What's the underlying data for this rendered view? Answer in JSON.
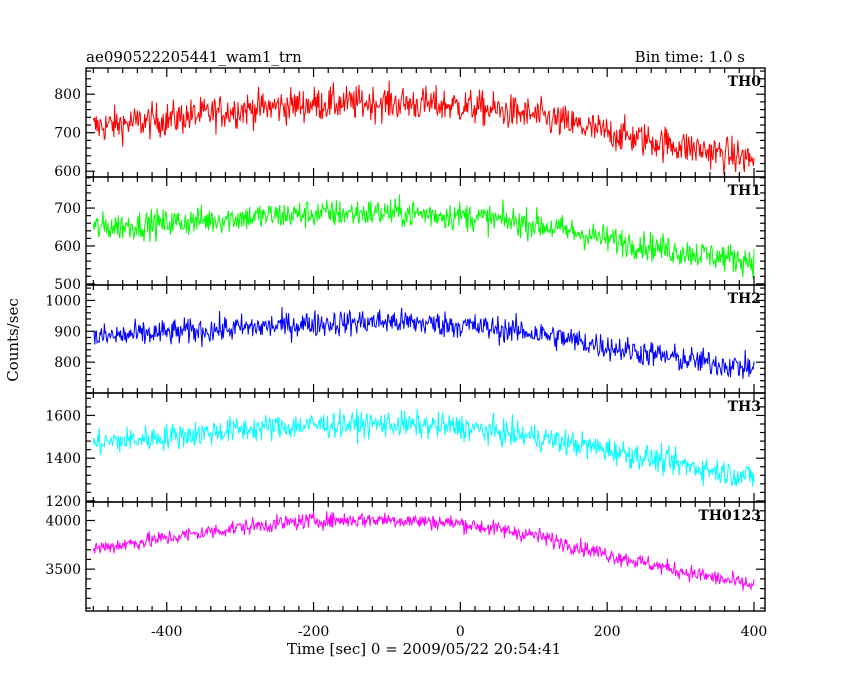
{
  "header": {
    "title": "ae090522205441_wam1_trn",
    "bin_time": "Bin time: 1.0 s"
  },
  "chart_data": {
    "type": "line",
    "xlabel": "Time [sec] 0 = 2009/05/22 20:54:41",
    "ylabel": "Counts/sec",
    "xlim": [
      -510,
      415
    ],
    "xticks": [
      -400,
      -200,
      0,
      200,
      400
    ],
    "x_range": [
      -500,
      400
    ],
    "grid": false,
    "panels": [
      {
        "name": "TH0",
        "color": "#ff0000",
        "ylim": [
          585,
          868
        ],
        "yticks": [
          600,
          700,
          800
        ],
        "trend_t": [
          -500,
          -400,
          -300,
          -200,
          -100,
          0,
          100,
          200,
          300,
          400
        ],
        "trend_y": [
          715,
          735,
          760,
          775,
          778,
          770,
          745,
          700,
          665,
          630
        ],
        "noise": 38
      },
      {
        "name": "TH1",
        "color": "#00ff00",
        "ylim": [
          497,
          782
        ],
        "yticks": [
          500,
          600,
          700
        ],
        "trend_t": [
          -500,
          -400,
          -300,
          -200,
          -100,
          0,
          100,
          200,
          300,
          400
        ],
        "trend_y": [
          648,
          660,
          675,
          685,
          688,
          680,
          658,
          618,
          585,
          560
        ],
        "noise": 32
      },
      {
        "name": "TH2",
        "color": "#0000ff",
        "ylim": [
          700,
          1050
        ],
        "yticks": [
          800,
          900,
          1000
        ],
        "trend_t": [
          -500,
          -400,
          -300,
          -200,
          -100,
          0,
          100,
          200,
          300,
          400
        ],
        "trend_y": [
          880,
          895,
          910,
          925,
          932,
          920,
          895,
          850,
          810,
          780
        ],
        "noise": 36
      },
      {
        "name": "TH3",
        "color": "#00ffff",
        "ylim": [
          1195,
          1705
        ],
        "yticks": [
          1200,
          1400,
          1600
        ],
        "trend_t": [
          -500,
          -400,
          -300,
          -200,
          -100,
          0,
          100,
          200,
          300,
          400
        ],
        "trend_y": [
          1470,
          1500,
          1535,
          1555,
          1560,
          1545,
          1500,
          1440,
          1370,
          1310
        ],
        "noise": 52
      },
      {
        "name": "TH0123",
        "color": "#ff00ff",
        "ylim": [
          3070,
          4190
        ],
        "yticks": [
          3500,
          4000
        ],
        "trend_t": [
          -500,
          -400,
          -300,
          -200,
          -100,
          0,
          100,
          200,
          300,
          400
        ],
        "trend_y": [
          3710,
          3820,
          3930,
          4000,
          4010,
          3970,
          3850,
          3650,
          3480,
          3330
        ],
        "noise": 70
      }
    ]
  }
}
